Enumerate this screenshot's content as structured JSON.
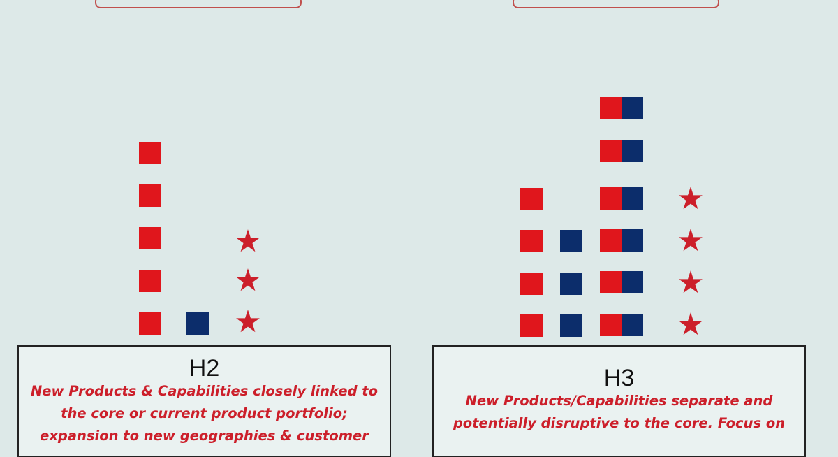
{
  "panels": [
    {
      "id": "h2",
      "title": "H2",
      "description": "New Products & Capabilities closely linked to the core or current product portfolio; expansion to new geographies & customer",
      "columns": {
        "red_squares": 5,
        "blue_squares": 1,
        "stars": 3
      }
    },
    {
      "id": "h3",
      "title": "H3",
      "description": "New Products/Capabilities separate and potentially disruptive to the core. Focus on",
      "columns": {
        "red_squares": 4,
        "blue_squares": 3,
        "split_squares": 6,
        "stars": 4
      }
    }
  ],
  "icons": {
    "red_square": "red-square-icon",
    "blue_square": "blue-square-icon",
    "split_square": "split-square-icon",
    "star": "star-icon"
  },
  "colors": {
    "background": "#dde9e8",
    "red": "#e0161c",
    "blue": "#0c2d6b",
    "star": "#cc1f2a",
    "description_text": "#cc1f2a",
    "top_box_border": "#c0504d"
  }
}
